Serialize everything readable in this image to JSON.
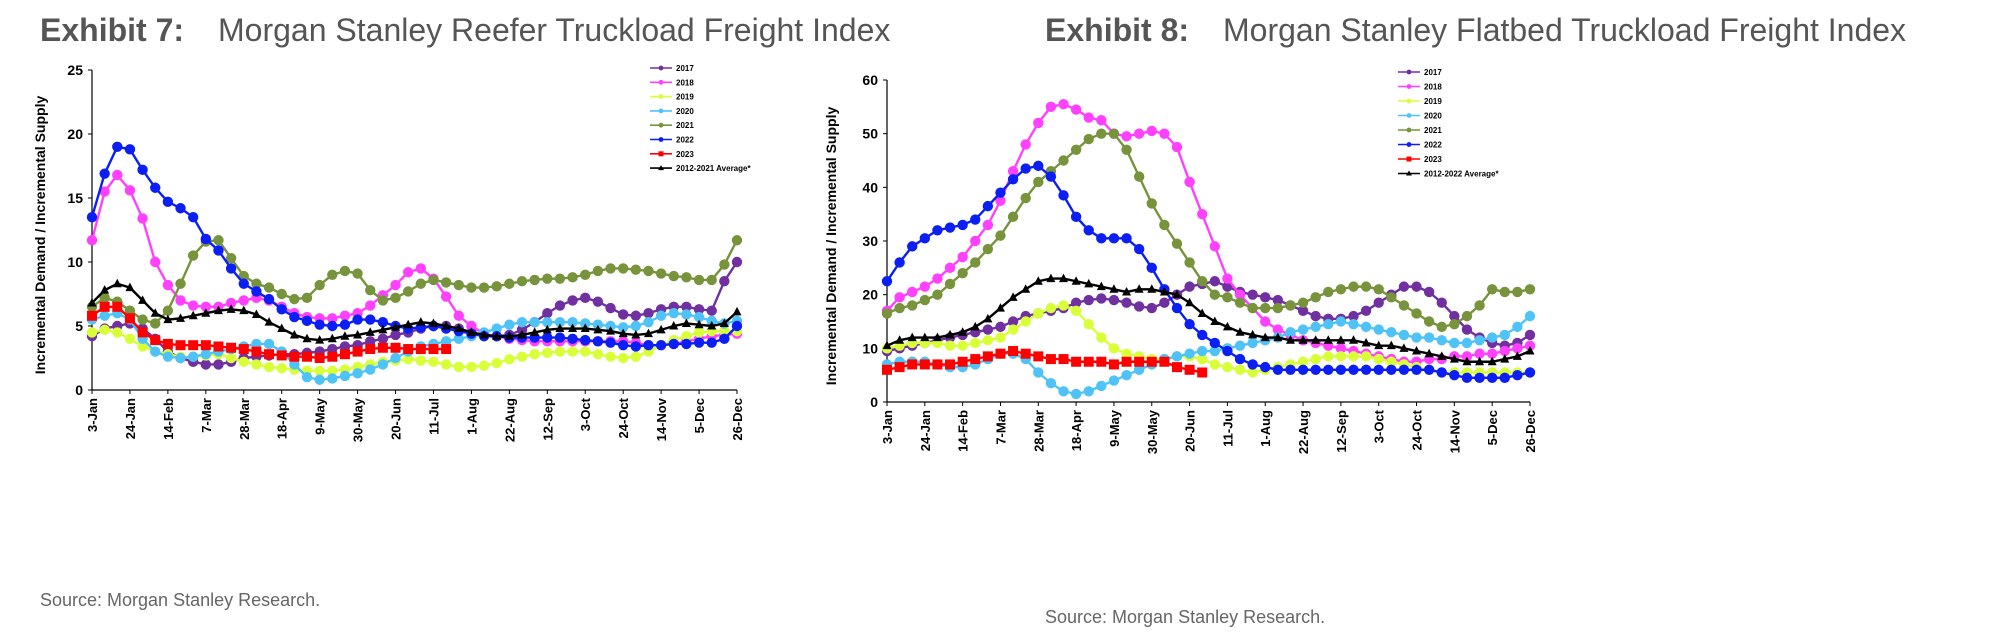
{
  "exhibits": [
    {
      "number": "Exhibit 7:",
      "title": "Morgan Stanley Reefer Truckload Freight Index",
      "source": "Source: Morgan Stanley Research."
    },
    {
      "number": "Exhibit 8:",
      "title": "Morgan Stanley Flatbed Truckload Freight Index",
      "source": "Source: Morgan Stanley Research."
    }
  ],
  "chart_data": [
    {
      "type": "line",
      "title": "",
      "xlabel": "",
      "ylabel": "Incremental Demand / Incremental Supply",
      "ylim": [
        0,
        25
      ],
      "yticks": [
        0,
        5,
        10,
        15,
        20,
        25
      ],
      "grid": false,
      "legend_position": "top-right",
      "week_count": 52,
      "x_tick_labels": [
        "3-Jan",
        "24-Jan",
        "14-Feb",
        "7-Mar",
        "28-Mar",
        "18-Apr",
        "9-May",
        "30-May",
        "20-Jun",
        "11-Jul",
        "1-Aug",
        "22-Aug",
        "12-Sep",
        "3-Oct",
        "24-Oct",
        "14-Nov",
        "5-Dec",
        "26-Dec"
      ],
      "series": [
        {
          "name": "2017",
          "color": "#7030a0",
          "marker": "circle",
          "values": [
            4.2,
            4.8,
            5.0,
            5.2,
            4.8,
            4.0,
            3.0,
            2.5,
            2.2,
            2.0,
            2.0,
            2.2,
            2.5,
            2.6,
            2.7,
            2.8,
            2.8,
            2.9,
            3.0,
            3.2,
            3.4,
            3.5,
            3.8,
            4.0,
            4.3,
            4.5,
            4.8,
            5.0,
            5.0,
            4.8,
            4.5,
            4.3,
            4.2,
            4.3,
            4.7,
            5.3,
            6.0,
            6.6,
            7.0,
            7.2,
            6.9,
            6.4,
            5.9,
            5.8,
            6.0,
            6.3,
            6.5,
            6.5,
            6.3,
            6.2,
            8.5,
            10.0
          ]
        },
        {
          "name": "2018",
          "color": "#ff40ff",
          "marker": "circle",
          "values": [
            11.7,
            15.5,
            16.8,
            15.6,
            13.4,
            10.0,
            8.2,
            7.0,
            6.6,
            6.5,
            6.5,
            6.8,
            7.0,
            7.2,
            7.0,
            6.5,
            6.0,
            5.7,
            5.6,
            5.6,
            5.8,
            6.0,
            6.6,
            7.4,
            8.2,
            9.2,
            9.5,
            8.7,
            7.3,
            5.8,
            5.0,
            4.4,
            4.2,
            4.0,
            3.9,
            3.8,
            3.8,
            3.8,
            3.8,
            3.8,
            3.8,
            3.8,
            3.8,
            3.7,
            3.5,
            3.5,
            3.6,
            3.8,
            4.0,
            4.2,
            4.3,
            4.4
          ]
        },
        {
          "name": "2019",
          "color": "#d9ff38",
          "marker": "circle",
          "values": [
            4.5,
            4.7,
            4.5,
            4.0,
            3.4,
            3.0,
            2.8,
            2.6,
            2.6,
            2.7,
            2.8,
            2.5,
            2.2,
            2.0,
            1.8,
            1.7,
            1.6,
            1.5,
            1.5,
            1.5,
            1.6,
            1.8,
            2.0,
            2.2,
            2.3,
            2.4,
            2.3,
            2.2,
            2.0,
            1.8,
            1.8,
            1.9,
            2.1,
            2.4,
            2.6,
            2.8,
            2.9,
            3.0,
            3.0,
            3.0,
            2.8,
            2.6,
            2.5,
            2.6,
            3.0,
            3.5,
            3.9,
            4.2,
            4.5,
            4.6,
            4.6,
            4.6
          ]
        },
        {
          "name": "2020",
          "color": "#4fc3f7",
          "marker": "circle",
          "values": [
            5.5,
            5.8,
            6.0,
            5.5,
            4.0,
            3.0,
            2.6,
            2.5,
            2.6,
            2.8,
            3.0,
            3.2,
            3.4,
            3.6,
            3.6,
            3.0,
            2.0,
            1.0,
            0.8,
            0.9,
            1.1,
            1.3,
            1.6,
            2.0,
            2.5,
            3.0,
            3.4,
            3.6,
            3.8,
            4.0,
            4.2,
            4.5,
            4.8,
            5.1,
            5.3,
            5.3,
            5.3,
            5.3,
            5.3,
            5.2,
            5.1,
            5.0,
            4.9,
            5.0,
            5.3,
            5.8,
            6.0,
            5.9,
            5.7,
            5.4,
            5.2,
            5.4
          ]
        },
        {
          "name": "2021",
          "color": "#77933c",
          "marker": "circle",
          "values": [
            6.5,
            7.2,
            6.9,
            6.2,
            5.5,
            5.2,
            6.2,
            8.3,
            10.5,
            11.6,
            11.7,
            10.3,
            8.9,
            8.3,
            8.0,
            7.5,
            7.1,
            7.2,
            8.2,
            9.0,
            9.3,
            9.1,
            7.8,
            7.0,
            7.2,
            7.7,
            8.3,
            8.6,
            8.4,
            8.2,
            8.0,
            8.0,
            8.1,
            8.3,
            8.5,
            8.6,
            8.7,
            8.7,
            8.8,
            9.0,
            9.3,
            9.5,
            9.5,
            9.4,
            9.3,
            9.1,
            8.9,
            8.8,
            8.6,
            8.6,
            9.8,
            11.7
          ]
        },
        {
          "name": "2022",
          "color": "#0b1ff5",
          "marker": "circle",
          "values": [
            13.5,
            16.9,
            19.0,
            18.8,
            17.2,
            15.8,
            14.7,
            14.2,
            13.5,
            11.8,
            10.9,
            9.5,
            8.3,
            7.7,
            7.1,
            6.3,
            5.7,
            5.4,
            5.1,
            5.0,
            5.1,
            5.5,
            5.5,
            5.3,
            5.0,
            4.8,
            4.9,
            5.0,
            4.8,
            4.6,
            4.4,
            4.2,
            4.2,
            4.1,
            4.1,
            4.1,
            4.1,
            4.1,
            4.0,
            3.9,
            3.8,
            3.7,
            3.5,
            3.4,
            3.5,
            3.5,
            3.6,
            3.6,
            3.7,
            3.7,
            4.0,
            5.0
          ]
        },
        {
          "name": "2023",
          "color": "#ff0000",
          "marker": "square",
          "values": [
            5.8,
            6.5,
            6.5,
            5.6,
            4.5,
            3.9,
            3.6,
            3.5,
            3.5,
            3.5,
            3.4,
            3.3,
            3.2,
            3.0,
            2.8,
            2.7,
            2.6,
            2.6,
            2.5,
            2.6,
            2.8,
            3.0,
            3.2,
            3.3,
            3.3,
            3.2,
            3.2,
            3.2,
            3.2
          ]
        },
        {
          "name": "2012-2021 Average*",
          "color": "#000000",
          "marker": "triangle",
          "values": [
            6.8,
            7.8,
            8.3,
            8.0,
            7.0,
            6.0,
            5.5,
            5.6,
            5.8,
            6.0,
            6.2,
            6.3,
            6.2,
            5.9,
            5.3,
            4.8,
            4.3,
            4.0,
            3.9,
            4.0,
            4.2,
            4.3,
            4.5,
            4.7,
            4.9,
            5.1,
            5.3,
            5.2,
            5.0,
            4.8,
            4.5,
            4.3,
            4.2,
            4.2,
            4.3,
            4.5,
            4.7,
            4.8,
            4.8,
            4.8,
            4.7,
            4.6,
            4.4,
            4.3,
            4.4,
            4.7,
            5.0,
            5.2,
            5.1,
            5.0,
            5.2,
            6.1
          ]
        }
      ]
    },
    {
      "type": "line",
      "title": "",
      "xlabel": "",
      "ylabel": "Incremental Demand / Incremental Supply",
      "ylim": [
        0,
        60
      ],
      "yticks": [
        0,
        10,
        20,
        30,
        40,
        50,
        60
      ],
      "grid": false,
      "legend_position": "top-right",
      "week_count": 52,
      "x_tick_labels": [
        "3-Jan",
        "24-Jan",
        "14-Feb",
        "7-Mar",
        "28-Mar",
        "18-Apr",
        "9-May",
        "30-May",
        "20-Jun",
        "11-Jul",
        "1-Aug",
        "22-Aug",
        "12-Sep",
        "3-Oct",
        "24-Oct",
        "14-Nov",
        "5-Dec",
        "26-Dec"
      ],
      "series": [
        {
          "name": "2017",
          "color": "#7030a0",
          "marker": "circle",
          "values": [
            9.5,
            10.0,
            10.5,
            11.0,
            11.5,
            12.0,
            12.5,
            13.0,
            13.5,
            14.0,
            15.0,
            16.0,
            16.5,
            17.0,
            17.5,
            18.5,
            19.0,
            19.3,
            19.0,
            18.5,
            17.8,
            17.5,
            18.5,
            20.0,
            21.5,
            22.0,
            22.5,
            21.5,
            20.5,
            20.0,
            19.5,
            19.0,
            18.0,
            17.0,
            16.0,
            15.5,
            15.5,
            16.0,
            17.0,
            18.5,
            20.0,
            21.5,
            21.5,
            20.5,
            18.5,
            16.0,
            13.5,
            12.0,
            11.0,
            10.5,
            11.0,
            12.5
          ]
        },
        {
          "name": "2018",
          "color": "#ff40ff",
          "marker": "circle",
          "values": [
            17.0,
            19.5,
            20.5,
            21.5,
            23.0,
            25.0,
            27.0,
            30.0,
            33.0,
            37.5,
            43.0,
            48.0,
            52.0,
            55.0,
            55.5,
            54.5,
            53.0,
            52.5,
            50.0,
            49.5,
            50.0,
            50.5,
            50.0,
            47.5,
            41.0,
            35.0,
            29.0,
            23.0,
            20.0,
            17.5,
            15.0,
            13.5,
            12.5,
            11.5,
            11.0,
            10.5,
            10.0,
            9.5,
            9.0,
            8.5,
            8.0,
            7.5,
            7.5,
            8.0,
            8.0,
            8.5,
            8.5,
            9.0,
            9.0,
            9.5,
            10.0,
            10.5
          ]
        },
        {
          "name": "2019",
          "color": "#d9ff38",
          "marker": "circle",
          "values": [
            10.0,
            10.5,
            11.0,
            11.0,
            11.0,
            10.5,
            10.5,
            11.0,
            11.5,
            12.0,
            13.5,
            15.0,
            16.5,
            17.5,
            18.0,
            17.0,
            14.5,
            12.0,
            10.0,
            9.0,
            8.5,
            8.0,
            8.0,
            8.5,
            8.5,
            8.0,
            7.0,
            6.5,
            6.0,
            5.5,
            6.0,
            6.5,
            7.0,
            7.5,
            8.0,
            8.5,
            8.5,
            8.5,
            8.5,
            8.0,
            7.5,
            7.0,
            6.5,
            6.0,
            5.5,
            5.5,
            5.5,
            5.5,
            5.5,
            5.5,
            5.5,
            5.5
          ]
        },
        {
          "name": "2020",
          "color": "#4fc3f7",
          "marker": "circle",
          "values": [
            7.0,
            7.5,
            7.5,
            7.5,
            7.0,
            6.5,
            6.5,
            7.0,
            8.0,
            9.0,
            9.0,
            8.0,
            5.5,
            3.5,
            2.0,
            1.5,
            2.0,
            3.0,
            4.0,
            5.0,
            6.0,
            7.0,
            8.0,
            8.5,
            9.0,
            9.5,
            9.5,
            10.0,
            10.5,
            11.0,
            11.5,
            12.0,
            13.0,
            13.5,
            14.0,
            14.5,
            15.0,
            14.5,
            14.0,
            13.5,
            13.0,
            12.5,
            12.0,
            12.0,
            11.5,
            11.0,
            11.0,
            11.5,
            12.0,
            12.5,
            14.0,
            16.0
          ]
        },
        {
          "name": "2021",
          "color": "#77933c",
          "marker": "circle",
          "values": [
            16.5,
            17.5,
            18.0,
            19.0,
            20.0,
            22.0,
            24.0,
            26.0,
            28.5,
            31.0,
            34.5,
            38.0,
            41.0,
            43.0,
            45.0,
            47.0,
            49.0,
            50.0,
            50.0,
            47.0,
            42.0,
            37.0,
            33.0,
            29.5,
            26.0,
            22.5,
            20.0,
            19.5,
            18.5,
            17.5,
            17.5,
            17.5,
            18.0,
            18.5,
            19.5,
            20.5,
            21.0,
            21.5,
            21.5,
            21.0,
            19.5,
            18.0,
            16.5,
            15.0,
            14.0,
            14.5,
            16.0,
            18.0,
            21.0,
            20.5,
            20.5,
            21.0
          ]
        },
        {
          "name": "2022",
          "color": "#0b1ff5",
          "marker": "circle",
          "values": [
            22.5,
            26.0,
            29.0,
            30.5,
            32.0,
            32.5,
            33.0,
            34.0,
            36.5,
            39.0,
            41.5,
            43.5,
            44.0,
            42.0,
            38.5,
            34.5,
            32.0,
            30.5,
            30.5,
            30.5,
            28.5,
            25.0,
            21.0,
            17.5,
            14.5,
            12.5,
            11.0,
            9.5,
            8.0,
            7.0,
            6.5,
            6.0,
            6.0,
            6.0,
            6.0,
            6.0,
            6.0,
            6.0,
            6.0,
            6.0,
            6.0,
            6.0,
            6.0,
            6.0,
            5.5,
            5.0,
            4.5,
            4.5,
            4.5,
            4.5,
            5.0,
            5.5
          ]
        },
        {
          "name": "2023",
          "color": "#ff0000",
          "marker": "square",
          "values": [
            6.0,
            6.5,
            7.0,
            7.0,
            7.0,
            7.0,
            7.5,
            8.0,
            8.5,
            9.0,
            9.5,
            9.0,
            8.5,
            8.0,
            8.0,
            7.5,
            7.5,
            7.5,
            7.0,
            7.5,
            7.5,
            7.5,
            7.5,
            6.5,
            6.0,
            5.5
          ]
        },
        {
          "name": "2012-2022 Average*",
          "color": "#000000",
          "marker": "triangle",
          "values": [
            10.5,
            11.5,
            12.0,
            12.0,
            12.0,
            12.5,
            13.0,
            14.0,
            15.5,
            17.5,
            19.5,
            21.0,
            22.5,
            23.0,
            23.0,
            22.5,
            22.0,
            21.5,
            21.0,
            20.5,
            21.0,
            21.0,
            20.5,
            20.0,
            18.5,
            16.5,
            15.0,
            14.0,
            13.0,
            12.5,
            12.0,
            12.0,
            11.5,
            11.5,
            11.5,
            11.5,
            11.5,
            11.5,
            11.0,
            10.5,
            10.5,
            10.0,
            9.5,
            9.0,
            8.5,
            8.0,
            7.5,
            7.5,
            7.5,
            8.0,
            8.5,
            9.5
          ]
        }
      ]
    }
  ]
}
